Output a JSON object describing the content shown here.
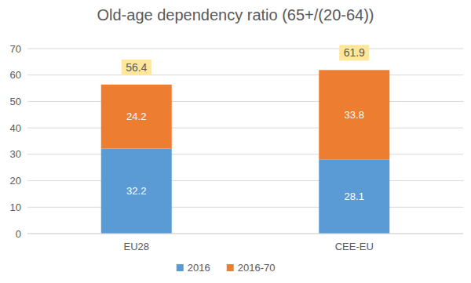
{
  "chart_data": {
    "type": "bar",
    "title": "Old-age dependency ratio (65+/(20-64))",
    "categories": [
      "EU28",
      "CEE-EU"
    ],
    "series": [
      {
        "name": "2016",
        "color": "#5b9bd5",
        "values": [
          32.2,
          28.1
        ]
      },
      {
        "name": "2016-70",
        "color": "#ed7d31",
        "values": [
          24.2,
          33.8
        ]
      }
    ],
    "totals": [
      56.4,
      61.9
    ],
    "stacked": true,
    "data_labels": true,
    "ylim": [
      0,
      70
    ],
    "yticks": [
      0,
      10,
      20,
      30,
      40,
      50,
      60,
      70
    ],
    "grid": true,
    "legend": "bottom"
  }
}
